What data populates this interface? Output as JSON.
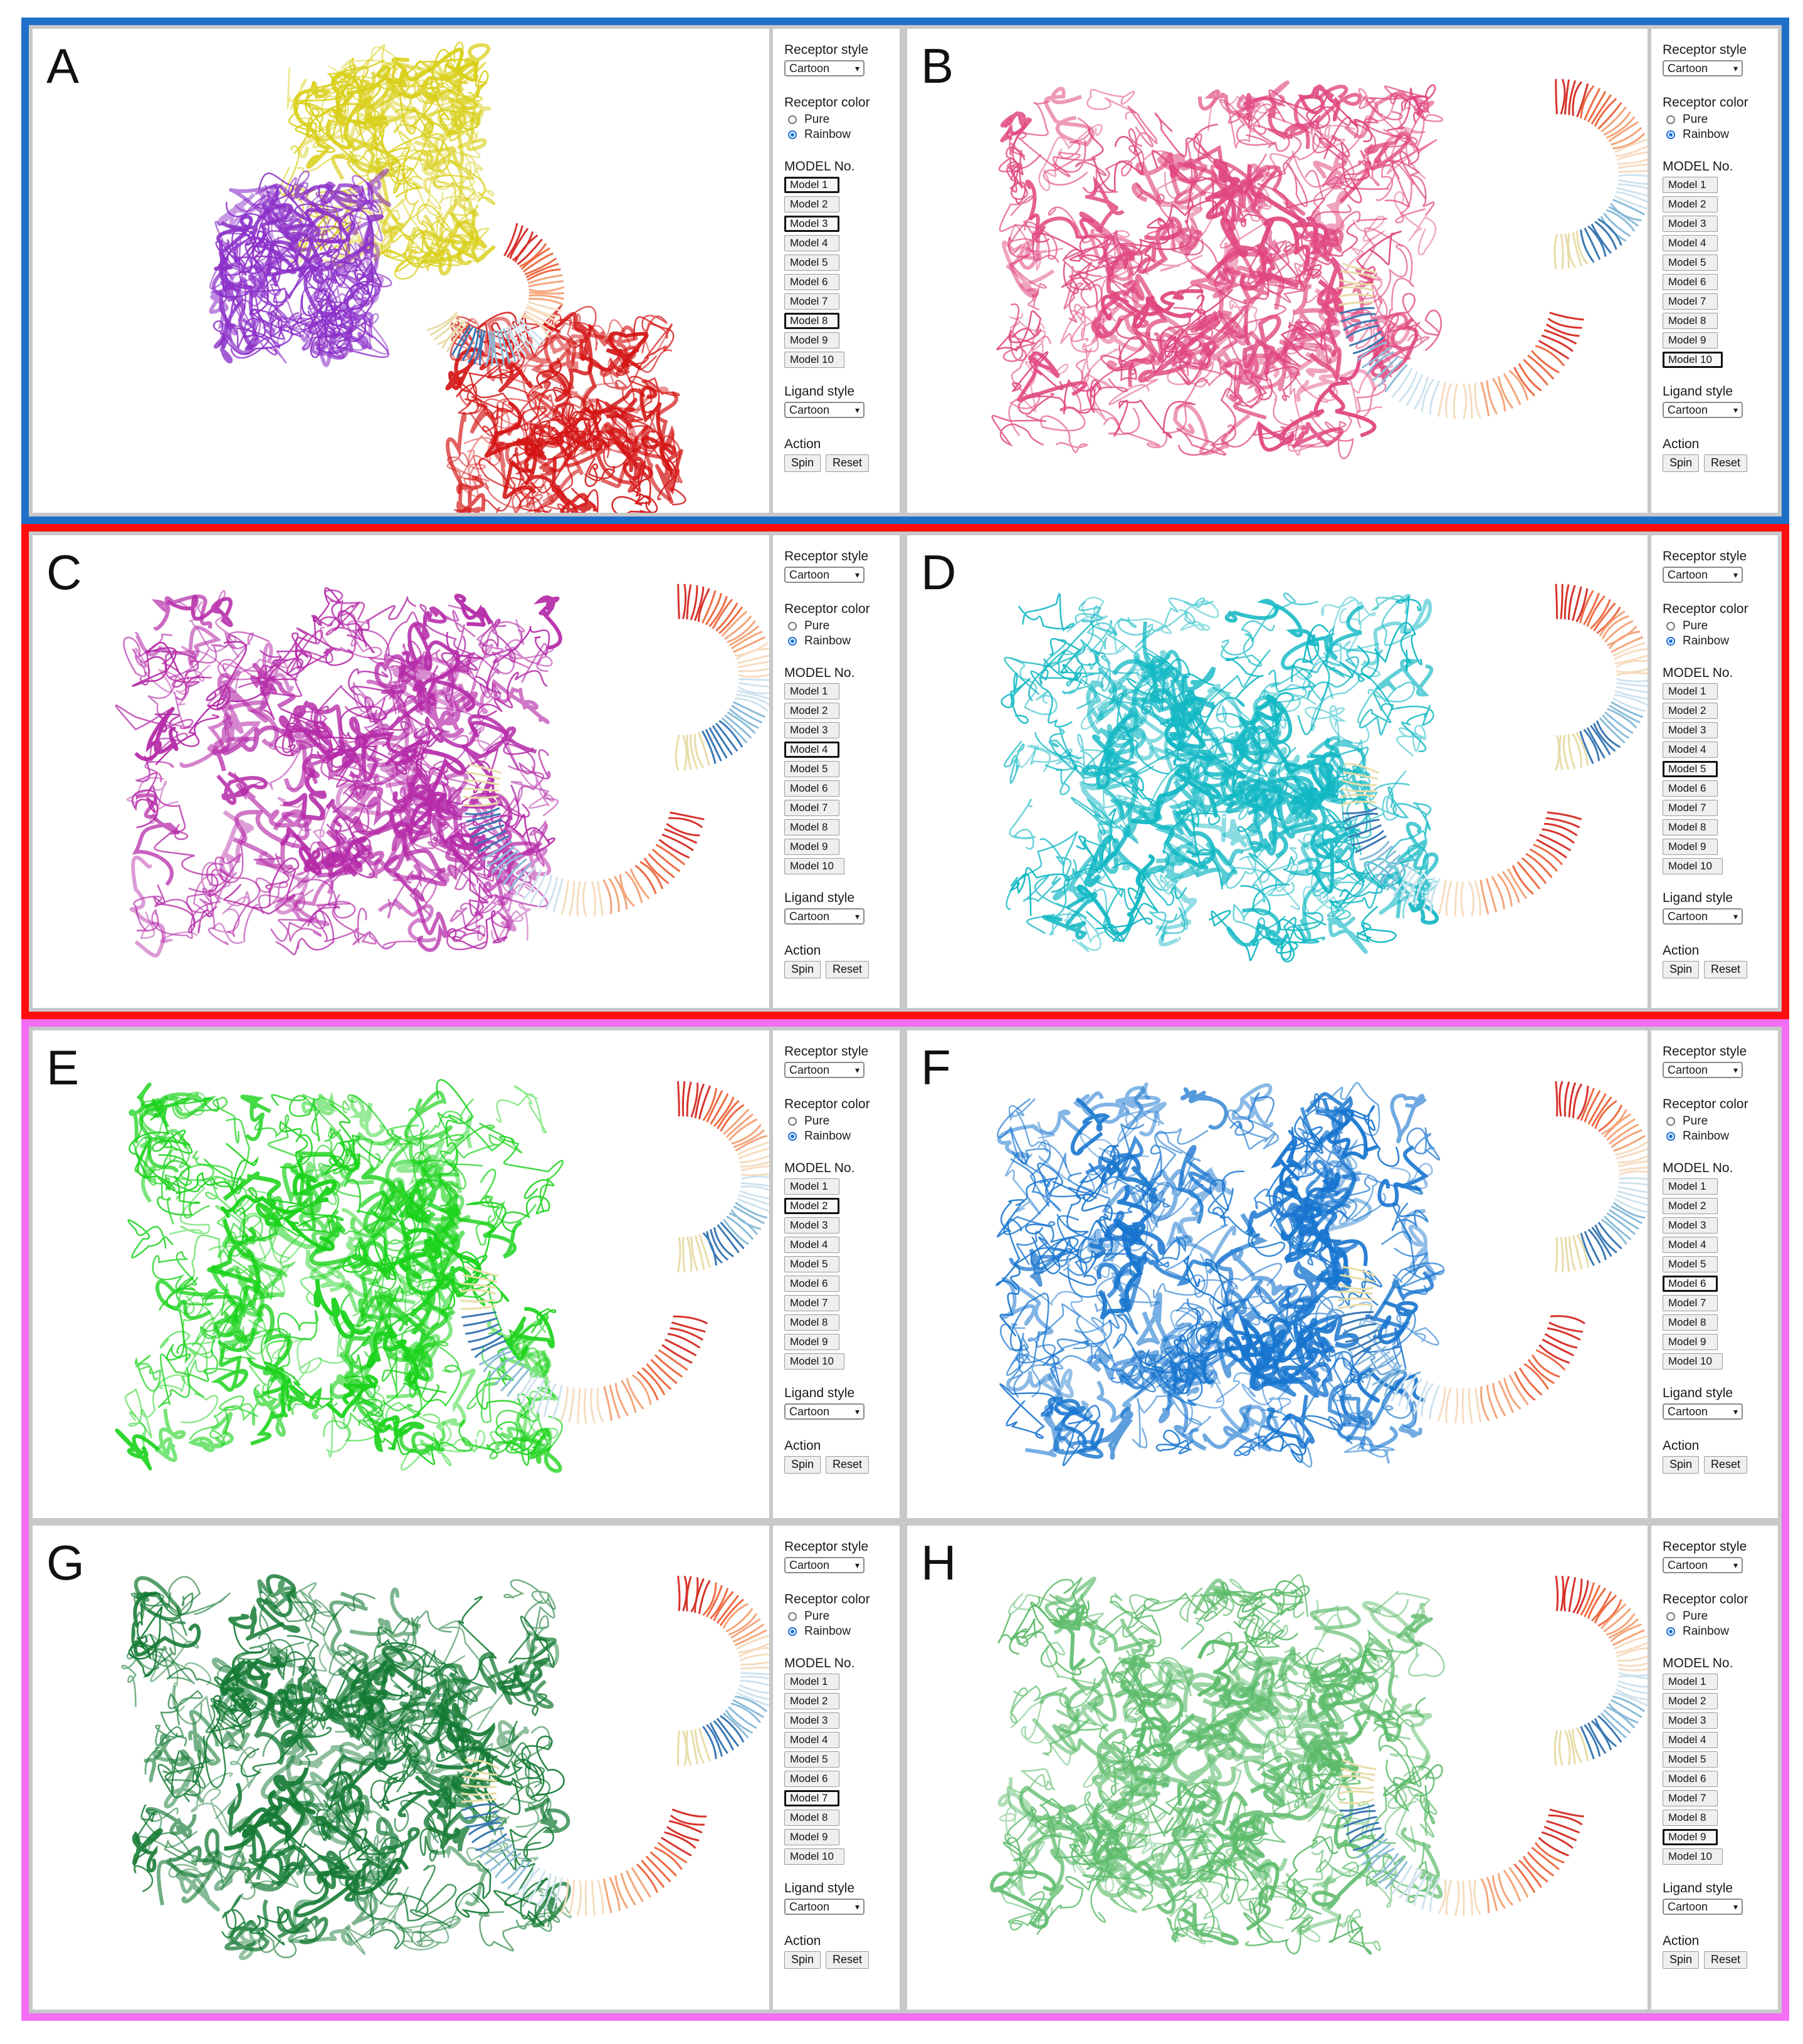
{
  "controls": {
    "receptor_style_label": "Receptor style",
    "receptor_style_value": "Cartoon",
    "receptor_color_label": "Receptor color",
    "color_options": [
      "Pure",
      "Rainbow"
    ],
    "model_label": "MODEL No.",
    "models": [
      "Model 1",
      "Model 2",
      "Model 3",
      "Model 4",
      "Model 5",
      "Model 6",
      "Model 7",
      "Model 8",
      "Model 9",
      "Model 10"
    ],
    "ligand_style_label": "Ligand style",
    "ligand_style_value": "Cartoon",
    "action_label": "Action",
    "spin_label": "Spin",
    "reset_label": "Reset"
  },
  "frames": [
    {
      "name": "blue-frame",
      "color": "#1f6fc9"
    },
    {
      "name": "red-frame",
      "color": "#ff0d0d"
    },
    {
      "name": "pink-frame",
      "color": "#f36ef5"
    }
  ],
  "panels": [
    {
      "letter": "A",
      "selected": [
        0,
        2,
        7
      ],
      "receptor_color": "#8b2fc9",
      "second_color": "#d9cf1a",
      "tail_color": "#d41414",
      "rainbow": "Rainbow"
    },
    {
      "letter": "B",
      "selected": [
        9
      ],
      "receptor_color": "#e0467e",
      "rainbow": "Rainbow"
    },
    {
      "letter": "C",
      "selected": [
        3
      ],
      "receptor_color": "#b52aa8",
      "rainbow": "Rainbow"
    },
    {
      "letter": "D",
      "selected": [
        4
      ],
      "receptor_color": "#12b8c4",
      "rainbow": "Rainbow"
    },
    {
      "letter": "E",
      "selected": [
        1
      ],
      "receptor_color": "#19d219",
      "rainbow": "Rainbow"
    },
    {
      "letter": "F",
      "selected": [
        5
      ],
      "receptor_color": "#1775cf",
      "rainbow": "Rainbow"
    },
    {
      "letter": "G",
      "selected": [
        6
      ],
      "receptor_color": "#137a33",
      "rainbow": "Rainbow"
    },
    {
      "letter": "H",
      "selected": [
        8
      ],
      "receptor_color": "#5cbb6a",
      "rainbow": "Rainbow"
    }
  ]
}
